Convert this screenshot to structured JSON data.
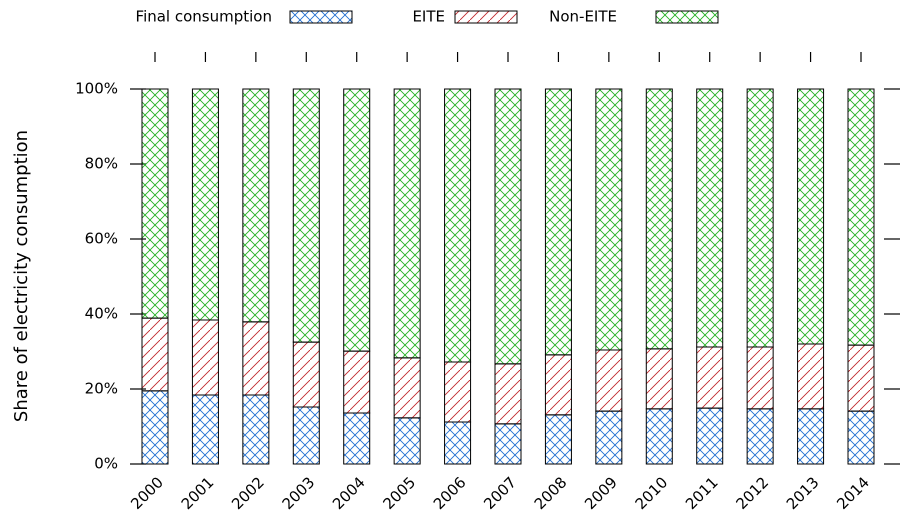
{
  "chart_data": {
    "type": "stacked-bar",
    "y_label": "Share of electricity consumption",
    "categories": [
      "2000",
      "2001",
      "2002",
      "2003",
      "2004",
      "2005",
      "2006",
      "2007",
      "2008",
      "2009",
      "2010",
      "2011",
      "2012",
      "2013",
      "2014"
    ],
    "series": [
      {
        "name": "Final consumption",
        "color": "#1f6fd0",
        "pattern": "crosshatch",
        "values": [
          19.5,
          18.4,
          18.4,
          15.2,
          13.6,
          12.3,
          11.2,
          10.7,
          13.1,
          14.1,
          14.7,
          14.9,
          14.7,
          14.7,
          14.1
        ]
      },
      {
        "name": "EITE",
        "color": "#c0282d",
        "pattern": "diagonal",
        "values": [
          19.4,
          20.0,
          19.5,
          17.3,
          16.5,
          16.0,
          16.0,
          16.0,
          16.0,
          16.3,
          16.0,
          16.3,
          16.5,
          17.3,
          17.6
        ]
      },
      {
        "name": "Non-EITE",
        "color": "#22b022",
        "pattern": "crosshatch",
        "values": [
          61.1,
          61.6,
          62.1,
          67.5,
          69.9,
          71.7,
          72.8,
          73.3,
          70.9,
          69.6,
          69.3,
          68.8,
          68.8,
          68.0,
          68.3
        ]
      }
    ],
    "ylim": [
      0,
      100
    ],
    "yticks": [
      {
        "value": 0,
        "label": "0%"
      },
      {
        "value": 20,
        "label": "20%"
      },
      {
        "value": 40,
        "label": "40%"
      },
      {
        "value": 60,
        "label": "60%"
      },
      {
        "value": 80,
        "label": "80%"
      },
      {
        "value": 100,
        "label": "100%"
      }
    ],
    "legend": "top"
  }
}
